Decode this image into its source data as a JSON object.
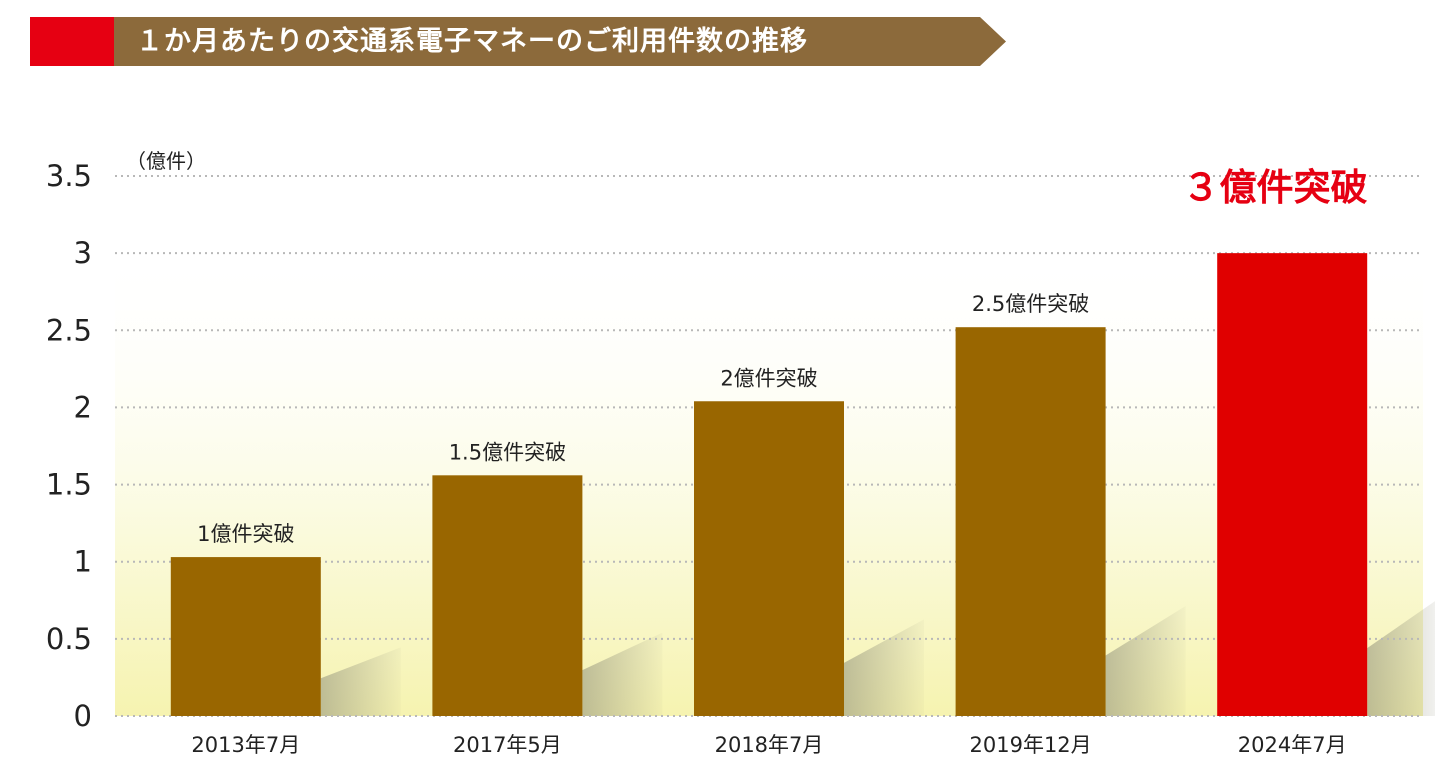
{
  "header": {
    "title": "１か月あたりの交通系電子マネーのご利用件数の推移",
    "accent_color": "#e60012",
    "band_color": "#8c6a3b"
  },
  "chart_data": {
    "type": "bar",
    "title": "１か月あたりの交通系電子マネーのご利用件数の推移",
    "unit_label": "（億件）",
    "categories": [
      "2013年7月",
      "2017年5月",
      "2018年7月",
      "2019年12月",
      "2024年7月"
    ],
    "values": [
      1.03,
      1.56,
      2.04,
      2.52,
      3.0
    ],
    "bar_labels": [
      "1億件突破",
      "1.5億件突破",
      "2億件突破",
      "2.5億件突破",
      ""
    ],
    "y_ticks": [
      "0",
      "0.5",
      "1",
      "1.5",
      "2",
      "2.5",
      "3",
      "3.5"
    ],
    "ylim": [
      0,
      3.5
    ],
    "grid": true,
    "grid_style": "dotted",
    "highlight_index": 4,
    "highlight_label": "３億件突破",
    "bar_color": "#996600",
    "highlight_color": "#e00000"
  }
}
